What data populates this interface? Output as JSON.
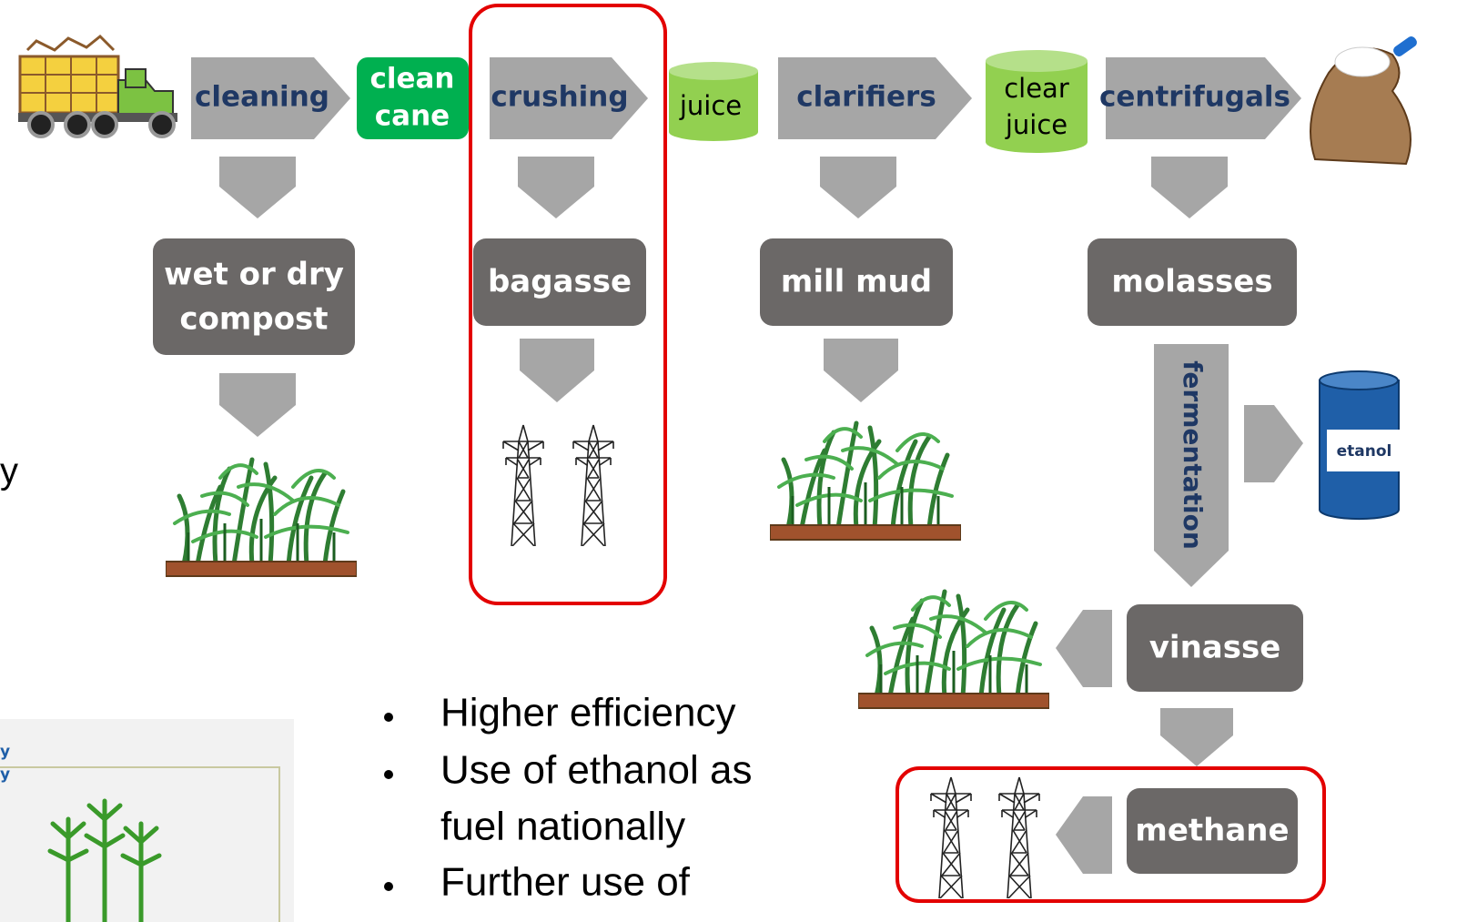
{
  "process": [
    {
      "label": "cleaning"
    },
    {
      "label": "crushing"
    },
    {
      "label": "clarifiers"
    },
    {
      "label": "centrifugals"
    }
  ],
  "intermediates": [
    {
      "lines": [
        "clean",
        "cane"
      ]
    },
    {
      "lines": [
        "juice"
      ]
    },
    {
      "lines": [
        "clear",
        "juice"
      ]
    }
  ],
  "byproducts": [
    {
      "lines": [
        "wet or dry",
        "compost"
      ]
    },
    {
      "lines": [
        "bagasse"
      ]
    },
    {
      "lines": [
        "mill mud"
      ]
    },
    {
      "lines": [
        "molasses"
      ]
    },
    {
      "lines": [
        "vinasse"
      ]
    },
    {
      "lines": [
        "methane"
      ]
    }
  ],
  "fermentation": "fermentation",
  "barrel_label": "etanol",
  "bullets": [
    {
      "lines": [
        "Higher efficiency"
      ]
    },
    {
      "lines": [
        "Use of ethanol as",
        "fuel nationally"
      ]
    },
    {
      "lines": [
        "Further use of"
      ]
    }
  ],
  "cropped_left_text": "y",
  "inset_texts": [
    "y",
    "y"
  ]
}
